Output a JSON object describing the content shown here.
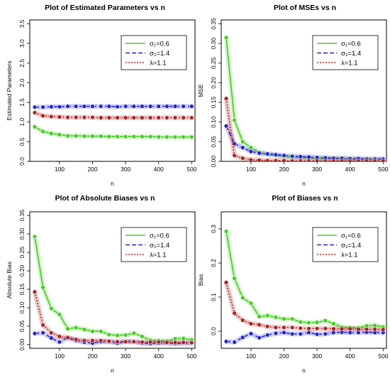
{
  "figure": {
    "panel_count": 4
  },
  "chart_data": [
    {
      "type": "line",
      "title": "Plot of Estimated Parameters vs n",
      "xlabel": "n",
      "ylabel": "Estimated Parameters",
      "xlim": [
        10,
        510
      ],
      "ylim": [
        0,
        3.6
      ],
      "xticks": [
        100,
        200,
        300,
        400,
        500
      ],
      "yticks": [
        0.0,
        0.5,
        1.0,
        1.5,
        2.0,
        2.5,
        3.0,
        3.5
      ],
      "grid": false,
      "legend_position": "top-right",
      "x": [
        25,
        50,
        75,
        100,
        125,
        150,
        175,
        200,
        225,
        250,
        275,
        300,
        325,
        350,
        375,
        400,
        425,
        450,
        475,
        500
      ],
      "series": [
        {
          "name": "σ₁=0.6",
          "color": "#44cc22",
          "style": "solid",
          "values": [
            0.88,
            0.76,
            0.71,
            0.68,
            0.65,
            0.65,
            0.64,
            0.64,
            0.64,
            0.63,
            0.63,
            0.63,
            0.63,
            0.63,
            0.63,
            0.62,
            0.62,
            0.62,
            0.62,
            0.62
          ]
        },
        {
          "name": "σ₂=1.4",
          "color": "#2222cc",
          "style": "dashed",
          "values": [
            1.38,
            1.38,
            1.39,
            1.39,
            1.4,
            1.4,
            1.4,
            1.4,
            1.4,
            1.4,
            1.39,
            1.4,
            1.4,
            1.4,
            1.4,
            1.4,
            1.4,
            1.4,
            1.4,
            1.4
          ]
        },
        {
          "name": "λ=1.1",
          "color": "#aa2222",
          "style": "dotted",
          "values": [
            1.24,
            1.16,
            1.14,
            1.13,
            1.12,
            1.12,
            1.12,
            1.12,
            1.11,
            1.11,
            1.11,
            1.11,
            1.11,
            1.11,
            1.11,
            1.11,
            1.11,
            1.11,
            1.11,
            1.11
          ]
        }
      ]
    },
    {
      "type": "line",
      "title": "Plot of MSEs vs n",
      "xlabel": "n",
      "ylabel": "MSE",
      "xlim": [
        10,
        510
      ],
      "ylim": [
        0,
        0.36
      ],
      "xticks": [
        100,
        200,
        300,
        400,
        500
      ],
      "yticks": [
        0.0,
        0.05,
        0.1,
        0.15,
        0.2,
        0.25,
        0.3,
        0.35
      ],
      "grid": false,
      "legend_position": "top-right",
      "x": [
        25,
        50,
        75,
        100,
        125,
        150,
        175,
        200,
        225,
        250,
        275,
        300,
        325,
        350,
        375,
        400,
        425,
        450,
        475,
        500
      ],
      "series": [
        {
          "name": "σ₁=0.6",
          "color": "#44cc22",
          "style": "solid",
          "values": [
            0.315,
            0.105,
            0.05,
            0.035,
            0.023,
            0.018,
            0.015,
            0.013,
            0.011,
            0.01,
            0.009,
            0.008,
            0.008,
            0.007,
            0.007,
            0.006,
            0.006,
            0.006,
            0.006,
            0.005
          ]
        },
        {
          "name": "σ₂=1.4",
          "color": "#2222cc",
          "style": "dashed",
          "values": [
            0.09,
            0.045,
            0.035,
            0.025,
            0.021,
            0.019,
            0.017,
            0.015,
            0.013,
            0.012,
            0.011,
            0.01,
            0.009,
            0.008,
            0.008,
            0.007,
            0.007,
            0.006,
            0.006,
            0.006
          ]
        },
        {
          "name": "λ=1.1",
          "color": "#aa2222",
          "style": "dotted",
          "values": [
            0.16,
            0.015,
            0.008,
            0.004,
            0.003,
            0.002,
            0.002,
            0.002,
            0.001,
            0.001,
            0.001,
            0.001,
            0.001,
            0.001,
            0.001,
            0.001,
            0.001,
            0.001,
            0.001,
            0.001
          ]
        }
      ]
    },
    {
      "type": "line",
      "title": "Plot of Absolute Biases vs n",
      "xlabel": "n",
      "ylabel": "Absolute Bias",
      "xlim": [
        10,
        510
      ],
      "ylim": [
        -0.01,
        0.36
      ],
      "xticks": [
        100,
        200,
        300,
        400,
        500
      ],
      "yticks": [
        0.0,
        0.05,
        0.1,
        0.15,
        0.2,
        0.25,
        0.3,
        0.35
      ],
      "grid": false,
      "legend_position": "top-right",
      "x": [
        25,
        50,
        75,
        100,
        125,
        150,
        175,
        200,
        225,
        250,
        275,
        300,
        325,
        350,
        375,
        400,
        425,
        450,
        475,
        500
      ],
      "series": [
        {
          "name": "σ₁=0.6",
          "color": "#44cc22",
          "style": "solid",
          "values": [
            0.293,
            0.155,
            0.098,
            0.082,
            0.043,
            0.046,
            0.041,
            0.036,
            0.036,
            0.027,
            0.025,
            0.026,
            0.031,
            0.022,
            0.012,
            0.011,
            0.01,
            0.016,
            0.017,
            0.013
          ]
        },
        {
          "name": "σ₂=1.4",
          "color": "#2222cc",
          "style": "dashed",
          "values": [
            0.03,
            0.032,
            0.018,
            0.007,
            0.019,
            0.011,
            0.006,
            0.004,
            0.008,
            0.008,
            0.004,
            0.009,
            0.008,
            0.004,
            0.003,
            0.004,
            0.004,
            0.003,
            0.004,
            0.004
          ]
        },
        {
          "name": "λ=1.1",
          "color": "#aa2222",
          "style": "dotted",
          "values": [
            0.143,
            0.053,
            0.032,
            0.022,
            0.019,
            0.014,
            0.011,
            0.011,
            0.011,
            0.009,
            0.008,
            0.008,
            0.008,
            0.007,
            0.007,
            0.007,
            0.006,
            0.006,
            0.006,
            0.005
          ]
        }
      ]
    },
    {
      "type": "line",
      "title": "Plot of Biases vs n",
      "xlabel": "n",
      "ylabel": "Bias",
      "xlim": [
        10,
        510
      ],
      "ylim": [
        -0.05,
        0.35
      ],
      "xticks": [
        100,
        200,
        300,
        400,
        500
      ],
      "yticks": [
        0.0,
        0.1,
        0.2,
        0.3
      ],
      "grid": false,
      "legend_position": "top-right",
      "x": [
        25,
        50,
        75,
        100,
        125,
        150,
        175,
        200,
        225,
        250,
        275,
        300,
        325,
        350,
        375,
        400,
        425,
        450,
        475,
        500
      ],
      "series": [
        {
          "name": "σ₁=0.6",
          "color": "#44cc22",
          "style": "solid",
          "values": [
            0.293,
            0.155,
            0.098,
            0.082,
            0.043,
            0.046,
            0.041,
            0.036,
            0.036,
            0.027,
            0.025,
            0.026,
            0.031,
            0.022,
            0.012,
            0.011,
            0.01,
            0.016,
            0.017,
            0.013
          ]
        },
        {
          "name": "σ₂=1.4",
          "color": "#2222cc",
          "style": "dashed",
          "values": [
            -0.03,
            -0.032,
            -0.018,
            -0.007,
            -0.019,
            -0.011,
            -0.006,
            -0.004,
            -0.008,
            -0.008,
            -0.004,
            -0.009,
            -0.008,
            -0.004,
            -0.003,
            -0.004,
            -0.004,
            -0.003,
            -0.004,
            -0.004
          ]
        },
        {
          "name": "λ=1.1",
          "color": "#aa2222",
          "style": "dotted",
          "values": [
            0.143,
            0.053,
            0.032,
            0.022,
            0.019,
            0.014,
            0.011,
            0.011,
            0.011,
            0.009,
            0.008,
            0.008,
            0.008,
            0.007,
            0.007,
            0.007,
            0.006,
            0.006,
            0.006,
            0.005
          ]
        }
      ]
    }
  ]
}
